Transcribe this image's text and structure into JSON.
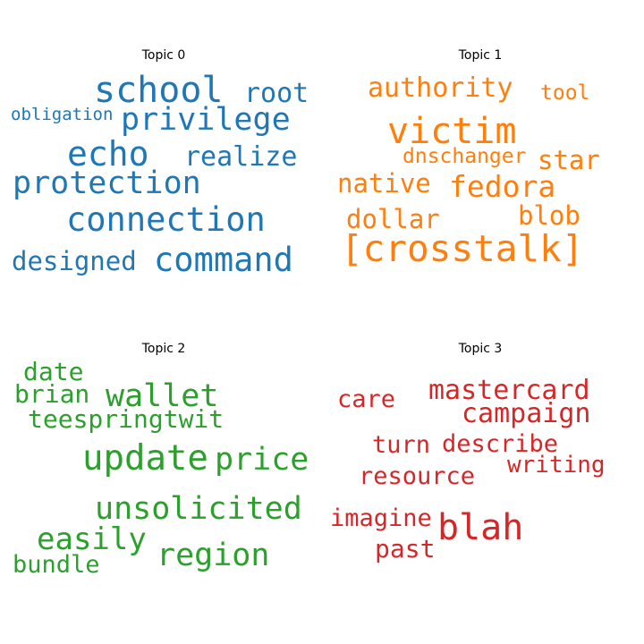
{
  "chart_data": [
    {
      "type": "wordcloud",
      "title": "Topic 0",
      "color": "#1f77b4",
      "words": [
        {
          "text": "school",
          "weight": 0.92
        },
        {
          "text": "root",
          "weight": 0.7
        },
        {
          "text": "obligation",
          "weight": 0.46
        },
        {
          "text": "privilege",
          "weight": 0.84
        },
        {
          "text": "echo",
          "weight": 0.9
        },
        {
          "text": "realize",
          "weight": 0.72
        },
        {
          "text": "protection",
          "weight": 0.88
        },
        {
          "text": "connection",
          "weight": 0.95
        },
        {
          "text": "designed",
          "weight": 0.76
        },
        {
          "text": "command",
          "weight": 1.0
        }
      ]
    },
    {
      "type": "wordcloud",
      "title": "Topic 1",
      "color": "#ff7f0e",
      "words": [
        {
          "text": "authority",
          "weight": 0.78
        },
        {
          "text": "tool",
          "weight": 0.56
        },
        {
          "text": "victim",
          "weight": 0.95
        },
        {
          "text": "dnschanger",
          "weight": 0.6
        },
        {
          "text": "star",
          "weight": 0.72
        },
        {
          "text": "native",
          "weight": 0.74
        },
        {
          "text": "fedora",
          "weight": 0.84
        },
        {
          "text": "dollar",
          "weight": 0.74
        },
        {
          "text": "blob",
          "weight": 0.72
        },
        {
          "text": "[crosstalk]",
          "weight": 1.0
        }
      ]
    },
    {
      "type": "wordcloud",
      "title": "Topic 2",
      "color": "#2ca02c",
      "words": [
        {
          "text": "date",
          "weight": 0.72
        },
        {
          "text": "brian",
          "weight": 0.7
        },
        {
          "text": "wallet",
          "weight": 0.88
        },
        {
          "text": "teespringtwit",
          "weight": 0.72
        },
        {
          "text": "update",
          "weight": 1.0
        },
        {
          "text": "price",
          "weight": 0.93
        },
        {
          "text": "unsolicited",
          "weight": 0.93
        },
        {
          "text": "easily",
          "weight": 0.86
        },
        {
          "text": "region",
          "weight": 0.9
        },
        {
          "text": "bundle",
          "weight": 0.7
        }
      ]
    },
    {
      "type": "wordcloud",
      "title": "Topic 3",
      "color": "#d62728",
      "words": [
        {
          "text": "care",
          "weight": 0.7
        },
        {
          "text": "mastercard",
          "weight": 0.86
        },
        {
          "text": "campaign",
          "weight": 0.82
        },
        {
          "text": "turn",
          "weight": 0.72
        },
        {
          "text": "describe",
          "weight": 0.72
        },
        {
          "text": "writing",
          "weight": 0.68
        },
        {
          "text": "resource",
          "weight": 0.72
        },
        {
          "text": "imagine",
          "weight": 0.72
        },
        {
          "text": "blah",
          "weight": 1.0
        },
        {
          "text": "past",
          "weight": 0.76
        }
      ]
    }
  ]
}
